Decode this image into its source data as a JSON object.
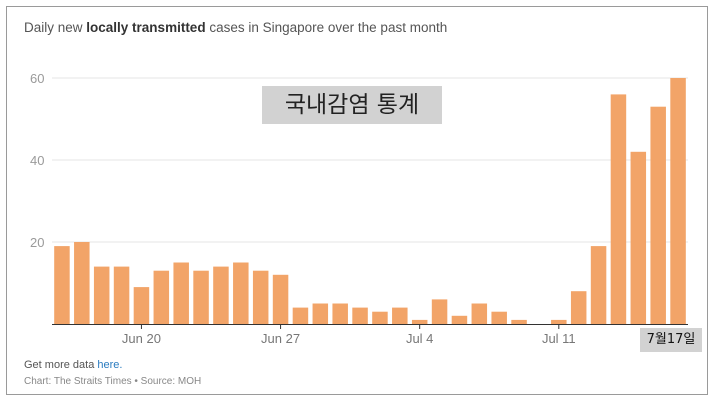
{
  "chart_data": {
    "type": "bar",
    "title_pre": "Daily new ",
    "title_bold": "locally transmitted",
    "title_post": " cases in Singapore over the past month",
    "ylim": [
      0,
      60
    ],
    "yticks": [
      20,
      40,
      60
    ],
    "grid": true,
    "bar_color": "#f2a468",
    "values": [
      19,
      20,
      14,
      14,
      9,
      13,
      15,
      13,
      14,
      15,
      13,
      12,
      4,
      5,
      5,
      4,
      3,
      4,
      1,
      6,
      2,
      5,
      3,
      1,
      0,
      1,
      8,
      19,
      56,
      42,
      53,
      60
    ],
    "xtick_labels": [
      {
        "label": "Jun 20",
        "index": 4
      },
      {
        "label": "Jun 27",
        "index": 11
      },
      {
        "label": "Jul 4",
        "index": 18
      },
      {
        "label": "Jul 11",
        "index": 25
      }
    ]
  },
  "overlay_label": "국내감염 통계",
  "date_badge": "7월17일",
  "footer": {
    "more_prefix": "Get more data ",
    "more_link": "here.",
    "source": "Chart: The Straits Times • Source: MOH"
  }
}
